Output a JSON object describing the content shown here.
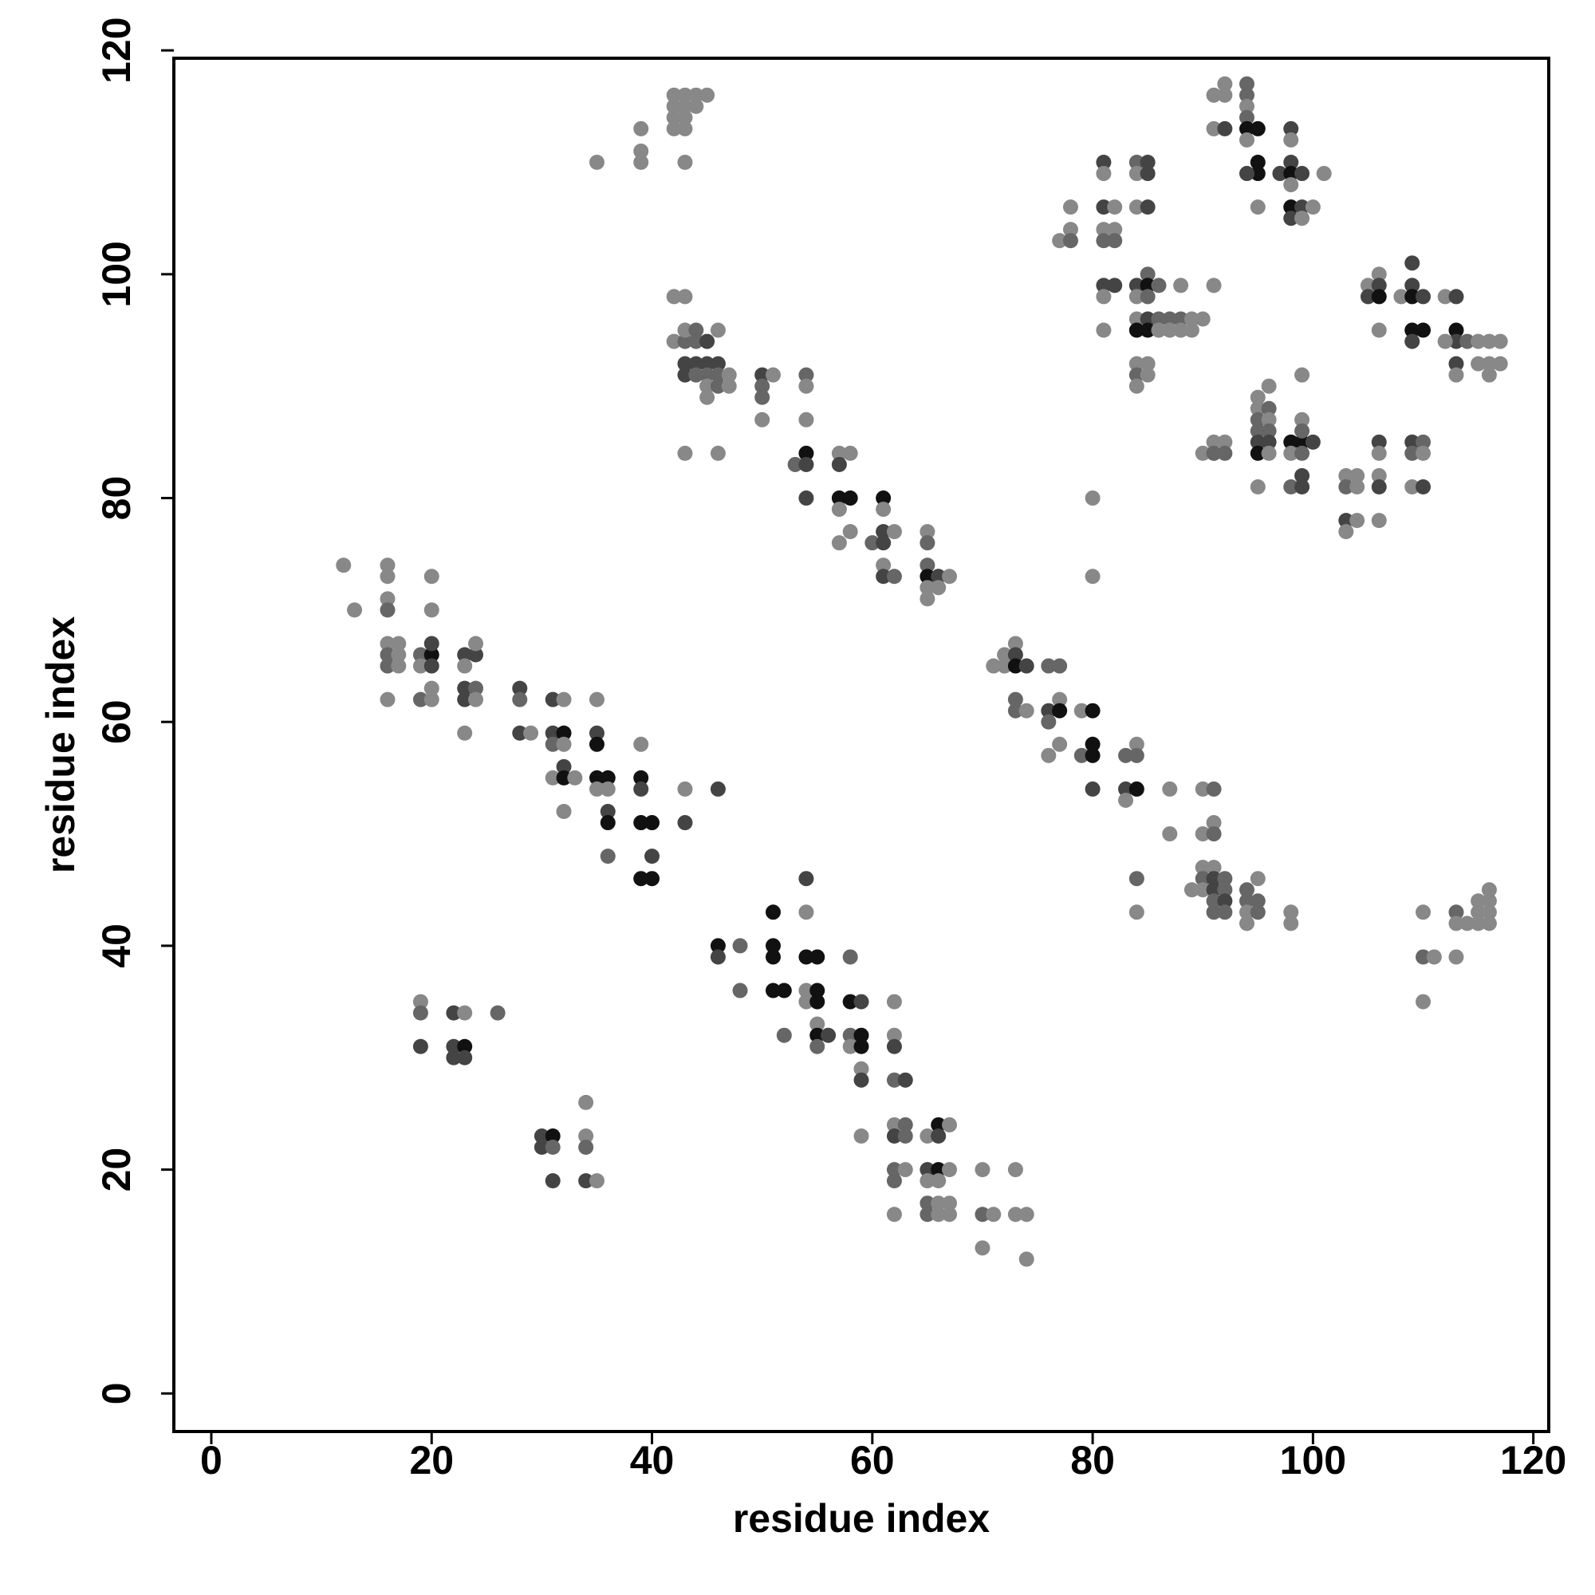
{
  "chart_data": {
    "type": "scatter",
    "xlabel": "residue index",
    "ylabel": "residue index",
    "xlim": [
      -3.4,
      121.4
    ],
    "ylim": [
      -3.4,
      119.3
    ],
    "xticks": [
      0,
      20,
      40,
      60,
      80,
      100,
      120
    ],
    "yticks": [
      0,
      20,
      40,
      60,
      80,
      100,
      120
    ],
    "x": [
      35,
      39,
      39,
      39,
      42,
      42,
      42,
      42,
      43,
      43,
      43,
      43,
      44,
      44,
      45,
      43,
      42,
      43,
      42,
      43,
      43,
      44,
      44,
      45,
      46,
      43,
      44,
      45,
      46,
      43,
      44,
      45,
      46,
      47,
      45,
      46,
      47,
      45,
      43,
      46,
      50,
      51,
      50,
      50,
      50,
      54,
      54,
      54,
      53,
      54,
      54,
      54,
      57,
      58,
      57,
      57,
      58,
      57,
      57,
      58,
      60,
      61,
      61,
      61,
      61,
      62,
      61,
      61,
      62,
      65,
      65,
      65,
      65,
      66,
      65,
      66,
      65,
      67,
      12,
      13,
      16,
      16,
      16,
      16,
      16,
      17,
      16,
      17,
      16,
      17,
      16,
      19,
      20,
      19,
      20,
      20,
      20,
      20,
      20,
      19,
      20,
      23,
      24,
      24,
      23,
      23,
      24,
      23,
      24,
      23,
      28,
      28,
      28,
      29,
      31,
      32,
      31,
      32,
      31,
      32,
      32,
      31,
      32,
      33,
      32,
      35,
      35,
      35,
      35,
      36,
      35,
      36,
      36,
      36,
      36,
      39,
      39,
      39,
      39,
      40,
      40,
      39,
      40,
      43,
      43,
      46,
      46,
      46,
      48,
      48,
      51,
      51,
      51,
      51,
      52,
      52,
      54,
      54,
      54,
      55,
      54,
      55,
      54,
      55,
      55,
      55,
      56,
      55,
      58,
      58,
      59,
      58,
      59,
      58,
      59,
      59,
      59,
      59,
      62,
      62,
      62,
      62,
      63,
      62,
      63,
      62,
      63,
      62,
      63,
      62,
      62,
      65,
      66,
      67,
      66,
      65,
      66,
      67,
      65,
      66,
      65,
      66,
      67,
      65,
      66,
      67,
      70,
      73,
      70,
      71,
      73,
      74,
      70,
      74,
      19,
      19,
      19,
      22,
      23,
      26,
      22,
      23,
      22,
      23,
      30,
      31,
      30,
      31,
      31,
      34,
      34,
      34,
      34,
      35,
      80,
      80,
      71,
      72,
      72,
      73,
      73,
      73,
      74,
      73,
      73,
      74,
      76,
      77,
      77,
      76,
      77,
      76,
      77,
      76,
      79,
      80,
      79,
      80,
      80,
      80,
      83,
      84,
      84,
      83,
      84,
      83,
      84,
      84,
      87,
      87,
      90,
      91,
      91,
      90,
      91,
      90,
      91,
      90,
      91,
      92,
      89,
      90,
      91,
      92,
      91,
      92,
      91,
      92,
      94,
      95,
      94,
      95,
      94,
      95,
      94,
      98,
      98,
      110,
      110,
      111,
      110,
      113,
      113,
      114,
      115,
      116,
      113,
      115,
      116,
      116,
      115,
      116,
      77,
      78,
      78,
      78,
      81,
      81,
      81,
      82,
      81,
      82,
      81,
      82,
      81,
      82,
      81,
      81,
      84,
      85,
      84,
      85,
      84,
      85,
      84,
      85,
      85,
      86,
      88,
      84,
      85,
      84,
      85,
      86,
      87,
      88,
      89,
      90,
      84,
      85,
      86,
      87,
      88,
      89,
      84,
      85,
      84,
      85,
      84,
      91,
      91,
      92,
      92,
      91,
      92,
      94,
      94,
      94,
      94,
      94,
      95,
      94,
      95,
      95,
      94,
      95,
      97,
      98,
      98,
      98,
      98,
      99,
      98,
      98,
      99,
      98,
      99,
      100,
      101,
      105,
      106,
      106,
      105,
      106,
      106,
      108,
      109,
      109,
      109,
      110,
      109,
      110,
      109,
      112,
      113,
      113,
      113,
      112,
      114,
      115,
      116,
      117,
      113,
      115,
      116,
      117,
      113,
      116,
      90,
      91,
      92,
      91,
      92,
      95,
      96,
      95,
      96,
      95,
      96,
      95,
      96,
      95,
      96,
      95,
      96,
      95,
      98,
      99,
      100,
      99,
      99,
      98,
      99,
      99,
      98,
      99,
      99,
      103,
      104,
      103,
      104,
      103,
      104,
      103,
      106,
      106,
      106,
      106,
      106,
      109,
      110,
      109,
      110,
      109,
      110
    ],
    "values": [
      110,
      113,
      111,
      110,
      116,
      115,
      114,
      113,
      116,
      115,
      113,
      110,
      116,
      115,
      116,
      114,
      98,
      98,
      94,
      94,
      95,
      95,
      94,
      94,
      95,
      92,
      92,
      92,
      92,
      91,
      91,
      91,
      91,
      91,
      90,
      90,
      90,
      89,
      84,
      84,
      91,
      91,
      90,
      89,
      87,
      91,
      90,
      87,
      83,
      84,
      83,
      80,
      84,
      84,
      83,
      80,
      80,
      79,
      76,
      77,
      76,
      80,
      79,
      77,
      76,
      77,
      74,
      73,
      73,
      77,
      76,
      74,
      73,
      73,
      72,
      72,
      71,
      73,
      74,
      70,
      74,
      73,
      71,
      70,
      67,
      67,
      66,
      66,
      65,
      65,
      62,
      66,
      66,
      65,
      65,
      67,
      73,
      70,
      63,
      62,
      62,
      66,
      66,
      67,
      65,
      63,
      63,
      62,
      62,
      59,
      63,
      62,
      59,
      59,
      62,
      62,
      59,
      59,
      58,
      58,
      56,
      55,
      55,
      55,
      52,
      62,
      59,
      58,
      55,
      55,
      54,
      54,
      52,
      51,
      48,
      58,
      55,
      54,
      51,
      51,
      48,
      46,
      46,
      54,
      51,
      54,
      40,
      39,
      40,
      36,
      43,
      40,
      39,
      36,
      36,
      32,
      46,
      43,
      39,
      39,
      36,
      36,
      35,
      35,
      33,
      32,
      32,
      31,
      39,
      35,
      35,
      32,
      32,
      31,
      31,
      29,
      28,
      23,
      35,
      32,
      31,
      28,
      28,
      24,
      24,
      23,
      23,
      20,
      20,
      19,
      16,
      23,
      24,
      24,
      23,
      20,
      20,
      20,
      19,
      19,
      17,
      17,
      17,
      16,
      16,
      16,
      20,
      20,
      16,
      16,
      16,
      16,
      13,
      12,
      35,
      34,
      31,
      34,
      34,
      34,
      31,
      31,
      30,
      30,
      23,
      23,
      22,
      22,
      19,
      26,
      23,
      22,
      19,
      19,
      80,
      73,
      65,
      66,
      65,
      67,
      66,
      65,
      65,
      62,
      61,
      61,
      65,
      65,
      62,
      61,
      61,
      60,
      58,
      57,
      61,
      61,
      57,
      58,
      57,
      54,
      57,
      58,
      57,
      54,
      54,
      53,
      46,
      43,
      54,
      50,
      54,
      54,
      51,
      50,
      50,
      47,
      47,
      46,
      46,
      46,
      45,
      45,
      45,
      45,
      44,
      44,
      43,
      43,
      45,
      46,
      44,
      44,
      43,
      43,
      42,
      43,
      42,
      43,
      39,
      39,
      35,
      43,
      42,
      42,
      42,
      42,
      39,
      44,
      44,
      45,
      43,
      43,
      103,
      106,
      104,
      103,
      110,
      109,
      106,
      106,
      104,
      104,
      103,
      103,
      99,
      99,
      98,
      95,
      110,
      110,
      109,
      109,
      106,
      106,
      99,
      100,
      99,
      99,
      99,
      98,
      98,
      96,
      96,
      96,
      96,
      96,
      96,
      96,
      95,
      95,
      95,
      95,
      95,
      95,
      92,
      92,
      91,
      91,
      90,
      99,
      116,
      117,
      116,
      113,
      113,
      117,
      116,
      115,
      114,
      113,
      113,
      112,
      110,
      109,
      109,
      106,
      109,
      113,
      112,
      110,
      109,
      109,
      108,
      106,
      106,
      105,
      105,
      106,
      109,
      99,
      100,
      99,
      98,
      98,
      95,
      98,
      101,
      99,
      98,
      98,
      95,
      95,
      94,
      98,
      98,
      95,
      94,
      94,
      94,
      94,
      94,
      94,
      92,
      92,
      92,
      92,
      91,
      91,
      84,
      85,
      85,
      84,
      84,
      89,
      90,
      88,
      88,
      87,
      87,
      86,
      86,
      85,
      85,
      84,
      84,
      81,
      85,
      85,
      85,
      87,
      86,
      84,
      84,
      91,
      81,
      81,
      82,
      82,
      82,
      81,
      81,
      78,
      78,
      77,
      85,
      84,
      82,
      81,
      78,
      85,
      85,
      84,
      84,
      81,
      81
    ],
    "colors": [
      "#888",
      "#888",
      "#888",
      "#888",
      "#888",
      "#888",
      "#888",
      "#888",
      "#888",
      "#888",
      "#888",
      "#888",
      "#888",
      "#888",
      "#888",
      "#888",
      "#888",
      "#888",
      "#888",
      "#666",
      "#888",
      "#666",
      "#666",
      "#444",
      "#888",
      "#444",
      "#444",
      "#444",
      "#444",
      "#444",
      "#666",
      "#666",
      "#666",
      "#888",
      "#888",
      "#666",
      "#888",
      "#888",
      "#888",
      "#888",
      "#444",
      "#888",
      "#666",
      "#666",
      "#888",
      "#666",
      "#888",
      "#888",
      "#666",
      "#111",
      "#444",
      "#444",
      "#888",
      "#888",
      "#444",
      "#111",
      "#111",
      "#888",
      "#888",
      "#888",
      "#666",
      "#111",
      "#888",
      "#444",
      "#444",
      "#888",
      "#888",
      "#444",
      "#666",
      "#888",
      "#666",
      "#666",
      "#111",
      "#444",
      "#888",
      "#888",
      "#888",
      "#888",
      "#888",
      "#888",
      "#888",
      "#888",
      "#888",
      "#666",
      "#888",
      "#888",
      "#666",
      "#888",
      "#666",
      "#888",
      "#888",
      "#666",
      "#111",
      "#888",
      "#444",
      "#444",
      "#888",
      "#888",
      "#888",
      "#666",
      "#888",
      "#444",
      "#444",
      "#888",
      "#888",
      "#444",
      "#666",
      "#444",
      "#888",
      "#888",
      "#444",
      "#666",
      "#444",
      "#888",
      "#444",
      "#888",
      "#444",
      "#111",
      "#666",
      "#888",
      "#444",
      "#888",
      "#111",
      "#888",
      "#888",
      "#888",
      "#444",
      "#111",
      "#111",
      "#111",
      "#888",
      "#888",
      "#444",
      "#111",
      "#666",
      "#888",
      "#111",
      "#444",
      "#111",
      "#111",
      "#444",
      "#111",
      "#111",
      "#888",
      "#444",
      "#444",
      "#111",
      "#444",
      "#666",
      "#666",
      "#111",
      "#111",
      "#111",
      "#111",
      "#111",
      "#666",
      "#444",
      "#888",
      "#111",
      "#111",
      "#888",
      "#111",
      "#888",
      "#111",
      "#888",
      "#111",
      "#444",
      "#666",
      "#666",
      "#111",
      "#444",
      "#666",
      "#111",
      "#888",
      "#111",
      "#888",
      "#444",
      "#888",
      "#888",
      "#888",
      "#444",
      "#666",
      "#444",
      "#888",
      "#666",
      "#444",
      "#666",
      "#666",
      "#888",
      "#666",
      "#888",
      "#888",
      "#111",
      "#888",
      "#444",
      "#444",
      "#111",
      "#888",
      "#888",
      "#888",
      "#666",
      "#888",
      "#888",
      "#666",
      "#888",
      "#888",
      "#888",
      "#888",
      "#666",
      "#888",
      "#888",
      "#888",
      "#888",
      "#888",
      "#888",
      "#666",
      "#444",
      "#444",
      "#888",
      "#666",
      "#444",
      "#111",
      "#444",
      "#444",
      "#444",
      "#111",
      "#444",
      "#666",
      "#444",
      "#888",
      "#888",
      "#666",
      "#444",
      "#888",
      "#888",
      "#888",
      "#888",
      "#888",
      "#888",
      "#888",
      "#444",
      "#111",
      "#444",
      "#666",
      "#666",
      "#888",
      "#666",
      "#666",
      "#888",
      "#444",
      "#111",
      "#666",
      "#888",
      "#888",
      "#888",
      "#111",
      "#666",
      "#111",
      "#111",
      "#444",
      "#666",
      "#888",
      "#666",
      "#444",
      "#111",
      "#888",
      "#666",
      "#888",
      "#888",
      "#888",
      "#888",
      "#666",
      "#888",
      "#888",
      "#666",
      "#888",
      "#888",
      "#666",
      "#444",
      "#666",
      "#888",
      "#888",
      "#444",
      "#666",
      "#666",
      "#444",
      "#666",
      "#666",
      "#666",
      "#888",
      "#666",
      "#666",
      "#888",
      "#666",
      "#888",
      "#888",
      "#888",
      "#888",
      "#666",
      "#888",
      "#888",
      "#666",
      "#888",
      "#888",
      "#888",
      "#888",
      "#888",
      "#888",
      "#888",
      "#888",
      "#888",
      "#888",
      "#888",
      "#888",
      "#888",
      "#666",
      "#444",
      "#888",
      "#444",
      "#888",
      "#888",
      "#888",
      "#666",
      "#666",
      "#444",
      "#444",
      "#888",
      "#888",
      "#666",
      "#444",
      "#888",
      "#444",
      "#888",
      "#444",
      "#444",
      "#666",
      "#111",
      "#666",
      "#888",
      "#888",
      "#666",
      "#888",
      "#444",
      "#666",
      "#666",
      "#666",
      "#888",
      "#888",
      "#111",
      "#111",
      "#888",
      "#888",
      "#888",
      "#888",
      "#888",
      "#888",
      "#666",
      "#888",
      "#888",
      "#888",
      "#888",
      "#888",
      "#888",
      "#888",
      "#444",
      "#666",
      "#666",
      "#888",
      "#666",
      "#111",
      "#111",
      "#888",
      "#111",
      "#111",
      "#444",
      "#888",
      "#444",
      "#444",
      "#888",
      "#444",
      "#111",
      "#444",
      "#888",
      "#111",
      "#444",
      "#444",
      "#888",
      "#888",
      "#888",
      "#888",
      "#888",
      "#444",
      "#444",
      "#111",
      "#888",
      "#888",
      "#444",
      "#444",
      "#111",
      "#444",
      "#111",
      "#111",
      "#444",
      "#888",
      "#444",
      "#111",
      "#444",
      "#888",
      "#666",
      "#888",
      "#888",
      "#888",
      "#444",
      "#888",
      "#888",
      "#888",
      "#888",
      "#888",
      "#888",
      "#888",
      "#888",
      "#666",
      "#666",
      "#888",
      "#888",
      "#888",
      "#666",
      "#666",
      "#888",
      "#666",
      "#666",
      "#444",
      "#444",
      "#111",
      "#888",
      "#888",
      "#111",
      "#111",
      "#444",
      "#888",
      "#666",
      "#888",
      "#666",
      "#888",
      "#666",
      "#444",
      "#444",
      "#888",
      "#888",
      "#666",
      "#888",
      "#444",
      "#888",
      "#888",
      "#444",
      "#888",
      "#888",
      "#444",
      "#888",
      "#444",
      "#666",
      "#666",
      "#888",
      "#888",
      "#444"
    ]
  }
}
